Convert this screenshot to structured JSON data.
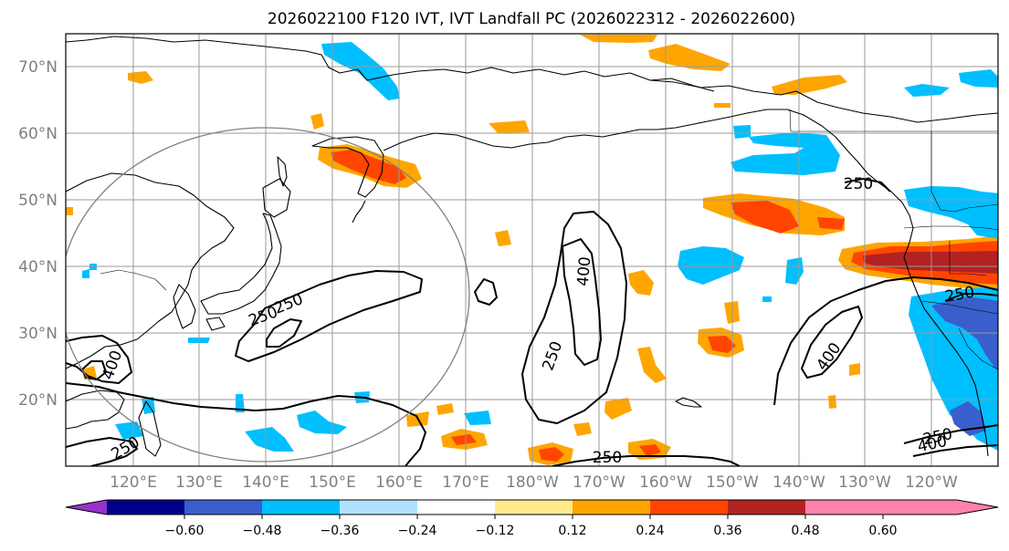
{
  "title": "2026022100 F120 IVT, IVT Landfall PC (2026022312 - 2026022600)",
  "lon_labels": [
    "120°E",
    "130°E",
    "140°E",
    "150°E",
    "160°E",
    "170°E",
    "180°W",
    "170°W",
    "160°W",
    "150°W",
    "140°W",
    "130°W",
    "120°W"
  ],
  "lat_labels": [
    "70°N",
    "60°N",
    "50°N",
    "40°N",
    "30°N",
    "20°N"
  ],
  "contour_labels": [
    "250",
    "400",
    "250",
    "400",
    "250",
    "250",
    "400",
    "250",
    "250",
    "400",
    "250",
    "250"
  ],
  "colorbar": {
    "colors": [
      "#9932cc",
      "#00008b",
      "#3a5fcd",
      "#00bfff",
      "#b0e2ff",
      "#ffffff",
      "#ffeb8b",
      "#ffa500",
      "#ff4500",
      "#b22222",
      "#ff82ab"
    ],
    "tick_labels": [
      "−0.60",
      "−0.48",
      "−0.36",
      "−0.24",
      "−0.12",
      "0.12",
      "0.24",
      "0.36",
      "0.48",
      "0.60"
    ]
  }
}
